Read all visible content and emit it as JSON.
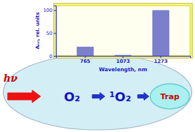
{
  "chart_data": {
    "type": "bar",
    "categories": [
      "765",
      "1073",
      "1273"
    ],
    "values": [
      20,
      2,
      100
    ],
    "color": "#7b7fcc",
    "xlabel": "Wavelength, nm",
    "ylabel": "Aᵣₑₗ, rel. units",
    "ylim": [
      0,
      110
    ],
    "yticks": [
      0,
      50,
      100
    ],
    "grid": false,
    "annotations": [
      "hν",
      "O₂",
      "¹O₂",
      "Trap"
    ]
  }
}
